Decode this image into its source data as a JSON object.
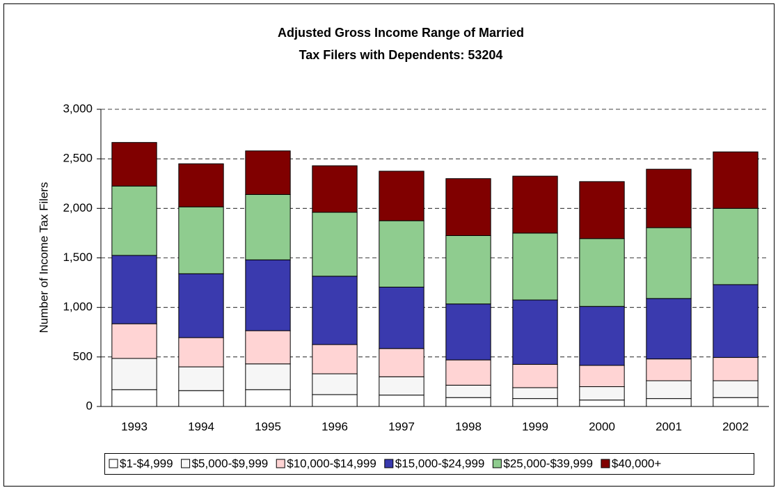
{
  "chart_data": {
    "type": "stacked_bar",
    "title": [
      "Adjusted Gross Income Range of Married",
      "Tax Filers with Dependents: 53204"
    ],
    "y_label": "Number of Income Tax Filers",
    "categories": [
      "1993",
      "1994",
      "1995",
      "1996",
      "1997",
      "1998",
      "1999",
      "2000",
      "2001",
      "2002"
    ],
    "series": [
      {
        "name": "$1-$4,999",
        "color": "#ffffff",
        "values": [
          170,
          160,
          170,
          120,
          115,
          90,
          80,
          65,
          80,
          90
        ]
      },
      {
        "name": "$5,000-$9,999",
        "color": "#f6f6f6",
        "values": [
          315,
          240,
          260,
          210,
          185,
          125,
          110,
          135,
          180,
          170
        ]
      },
      {
        "name": "$10,000-$14,999",
        "color": "#ffd4d4",
        "values": [
          350,
          295,
          335,
          295,
          285,
          255,
          235,
          215,
          220,
          235
        ]
      },
      {
        "name": "$15,000-$24,999",
        "color": "#3a3aae",
        "values": [
          690,
          645,
          715,
          690,
          620,
          565,
          650,
          595,
          610,
          735
        ]
      },
      {
        "name": "$25,000-$39,999",
        "color": "#8fcc8f",
        "values": [
          700,
          675,
          660,
          645,
          670,
          690,
          675,
          685,
          715,
          770
        ]
      },
      {
        "name": "$40,000+",
        "color": "#800000",
        "values": [
          440,
          435,
          440,
          470,
          500,
          575,
          575,
          575,
          590,
          570
        ]
      }
    ],
    "ylim": [
      0,
      3000
    ],
    "yticks": [
      0,
      500,
      {
        "value": 1000,
        "label": "1,000"
      },
      {
        "value": 1500,
        "label": "1,500"
      },
      {
        "value": 2000,
        "label": "2,000"
      },
      {
        "value": 2500,
        "label": "2,500"
      },
      {
        "value": 3000,
        "label": "3,000"
      }
    ],
    "grid": true,
    "legend": "bottom"
  }
}
